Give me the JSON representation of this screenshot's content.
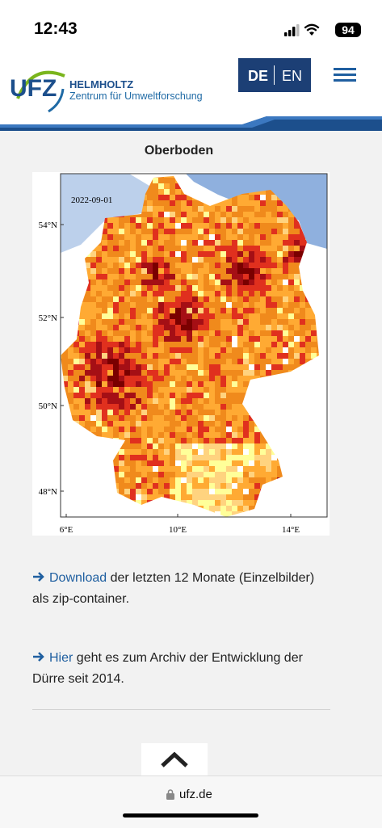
{
  "status_bar": {
    "time": "12:43",
    "battery": "94"
  },
  "header": {
    "logo": "UFZ",
    "org_name": "HELMHOLTZ",
    "org_subtitle": "Zentrum für Umweltforschung",
    "lang_active": "DE",
    "lang_other": "EN"
  },
  "section_title": "Oberboden",
  "map": {
    "date": "2022-09-01",
    "lat_labels": [
      "54°N",
      "52°N",
      "50°N",
      "48°N"
    ],
    "lon_labels": [
      "6°E",
      "10°E",
      "14°E"
    ]
  },
  "links": [
    {
      "link_text": "Download",
      "text": "der letzten 12 Monate (Einzelbilder) als zip-container."
    },
    {
      "link_text": "Hier",
      "text": "geht es zum Archiv der Entwicklung der Dürre seit 2014."
    }
  ],
  "address_bar": {
    "url": "ufz.de"
  }
}
